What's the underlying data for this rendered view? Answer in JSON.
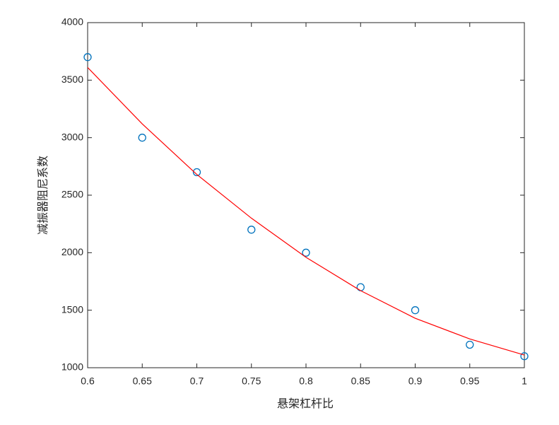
{
  "chart_data": {
    "type": "scatter",
    "x_label": "悬架杠杆比",
    "y_label": "减振器阻尼系数",
    "x": [
      0.6,
      0.65,
      0.7,
      0.75,
      0.8,
      0.85,
      0.9,
      0.95,
      1
    ],
    "series": [
      {
        "type": "scatter",
        "color": "#0072bd",
        "values": [
          3700,
          3000,
          2700,
          2200,
          2000,
          1700,
          1500,
          1200,
          1100
        ]
      },
      {
        "type": "line",
        "color": "#ff0000",
        "values": [
          3610,
          3120,
          2680,
          2300,
          1960,
          1670,
          1430,
          1250,
          1110
        ]
      }
    ],
    "xlim": [
      0.6,
      1
    ],
    "ylim": [
      1000,
      4000
    ],
    "xticks": [
      0.6,
      0.65,
      0.7,
      0.75,
      0.8,
      0.85,
      0.9,
      0.95,
      1
    ],
    "yticks": [
      1000,
      1500,
      2000,
      2500,
      3000,
      3500,
      4000
    ],
    "grid": false
  }
}
